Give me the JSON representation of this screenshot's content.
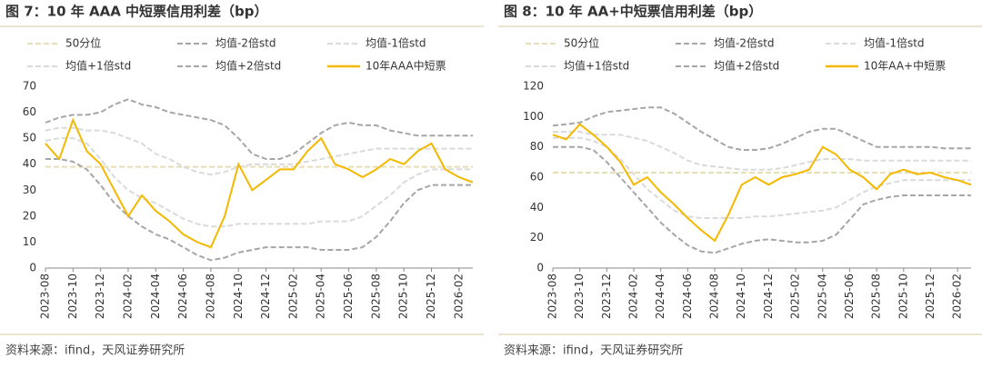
{
  "chart_data": [
    {
      "type": "line",
      "title": "图 7：10 年 AAA 中短票信用利差（bp）",
      "source": "资料来源：ifind，天风证券研究所",
      "categories": [
        "2023-08",
        null,
        "2023-10",
        null,
        "2023-12",
        null,
        "2024-02",
        null,
        "2024-04",
        null,
        "2024-06",
        null,
        "2024-08",
        null,
        "2024-10",
        null,
        "2024-12",
        null,
        "2025-02",
        null,
        "2025-04",
        null,
        "2025-06",
        null,
        "2025-08",
        null,
        "2025-10",
        null,
        "2025-12",
        null,
        "2026-02",
        null
      ],
      "ylim": [
        0,
        70
      ],
      "yticks": [
        0,
        10,
        20,
        30,
        40,
        50,
        60,
        70
      ],
      "series": [
        {
          "name": "50分位",
          "color": "#e6dfb5",
          "dash": true,
          "values": [
            39,
            39,
            39,
            39,
            39,
            39,
            39,
            39,
            39,
            39,
            39,
            39,
            39,
            39,
            39,
            39,
            39,
            39,
            39,
            39,
            39,
            39,
            39,
            39,
            39,
            39,
            39,
            39,
            39,
            39,
            39,
            39
          ]
        },
        {
          "name": "均值-2倍std",
          "color": "#a6a6a6",
          "dash": true,
          "values": [
            42,
            42,
            41,
            38,
            32,
            25,
            20,
            16,
            13,
            11,
            8,
            5,
            3,
            4,
            6,
            7,
            8,
            8,
            8,
            8,
            7,
            7,
            7,
            8,
            12,
            18,
            25,
            30,
            32,
            32,
            32,
            32
          ]
        },
        {
          "name": "均值-1倍std",
          "color": "#dadada",
          "dash": true,
          "values": [
            49,
            50,
            50,
            48,
            42,
            35,
            30,
            27,
            25,
            22,
            19,
            17,
            16,
            16,
            17,
            17,
            17,
            17,
            17,
            17,
            18,
            18,
            18,
            20,
            24,
            28,
            33,
            36,
            38,
            38,
            38,
            38
          ]
        },
        {
          "name": "均值+1倍std",
          "color": "#dadada",
          "dash": true,
          "values": [
            53,
            54,
            54,
            53,
            53,
            52,
            50,
            48,
            44,
            42,
            39,
            37,
            36,
            37,
            39,
            40,
            40,
            40,
            40,
            41,
            42,
            43,
            44,
            45,
            46,
            46,
            46,
            46,
            46,
            46,
            46,
            46
          ]
        },
        {
          "name": "均值+2倍std",
          "color": "#a6a6a6",
          "dash": true,
          "values": [
            56,
            58,
            59,
            59,
            60,
            63,
            65,
            63,
            62,
            60,
            59,
            58,
            57,
            55,
            50,
            44,
            42,
            42,
            44,
            48,
            52,
            55,
            56,
            55,
            55,
            53,
            52,
            51,
            51,
            51,
            51,
            51
          ]
        },
        {
          "name": "10年AAA中短票",
          "color": "#f5b800",
          "dash": false,
          "values": [
            48,
            42,
            57,
            45,
            40,
            30,
            20,
            28,
            22,
            18,
            13,
            10,
            8,
            20,
            40,
            30,
            34,
            38,
            38,
            45,
            50,
            40,
            38,
            35,
            38,
            42,
            40,
            45,
            48,
            38,
            35,
            33
          ]
        }
      ]
    },
    {
      "type": "line",
      "title": "图 8：10 年 AA+中短票信用利差（bp）",
      "source": "资料来源：ifind，天风证券研究所",
      "categories": [
        "2023-08",
        null,
        "2023-10",
        null,
        "2023-12",
        null,
        "2024-02",
        null,
        "2024-04",
        null,
        "2024-06",
        null,
        "2024-08",
        null,
        "2024-10",
        null,
        "2024-12",
        null,
        "2025-02",
        null,
        "2025-04",
        null,
        "2025-06",
        null,
        "2025-08",
        null,
        "2025-10",
        null,
        "2025-12",
        null,
        "2026-02",
        null
      ],
      "ylim": [
        0,
        120
      ],
      "yticks": [
        0,
        20,
        40,
        60,
        80,
        100,
        120
      ],
      "series": [
        {
          "name": "50分位",
          "color": "#e6dfb5",
          "dash": true,
          "values": [
            63,
            63,
            63,
            63,
            63,
            63,
            63,
            63,
            63,
            63,
            63,
            63,
            63,
            63,
            63,
            63,
            63,
            63,
            63,
            63,
            63,
            63,
            63,
            63,
            63,
            63,
            63,
            63,
            63,
            63,
            63,
            63
          ]
        },
        {
          "name": "均值-2倍std",
          "color": "#a6a6a6",
          "dash": true,
          "values": [
            80,
            80,
            80,
            78,
            70,
            60,
            50,
            40,
            30,
            22,
            15,
            11,
            10,
            13,
            16,
            18,
            19,
            18,
            17,
            17,
            18,
            22,
            32,
            42,
            45,
            47,
            48,
            48,
            48,
            48,
            48,
            48
          ]
        },
        {
          "name": "均值-1倍std",
          "color": "#dadada",
          "dash": true,
          "values": [
            86,
            86,
            86,
            84,
            80,
            72,
            62,
            52,
            45,
            38,
            34,
            33,
            33,
            33,
            33,
            34,
            34,
            35,
            36,
            37,
            38,
            40,
            45,
            50,
            54,
            56,
            58,
            58,
            58,
            58,
            58,
            58
          ]
        },
        {
          "name": "均值+1倍std",
          "color": "#dadada",
          "dash": true,
          "values": [
            90,
            90,
            90,
            88,
            88,
            88,
            86,
            84,
            80,
            76,
            71,
            68,
            67,
            66,
            65,
            65,
            65,
            66,
            68,
            70,
            72,
            72,
            72,
            71,
            71,
            71,
            71,
            71,
            71,
            71,
            71,
            71
          ]
        },
        {
          "name": "均值+2倍std",
          "color": "#a6a6a6",
          "dash": true,
          "values": [
            94,
            95,
            96,
            100,
            103,
            104,
            105,
            106,
            106,
            102,
            96,
            90,
            85,
            80,
            78,
            78,
            79,
            82,
            86,
            90,
            92,
            92,
            88,
            84,
            80,
            80,
            80,
            80,
            80,
            79,
            79,
            79
          ]
        },
        {
          "name": "10年AA+中短票",
          "color": "#f5b800",
          "dash": false,
          "values": [
            88,
            85,
            95,
            88,
            80,
            70,
            55,
            60,
            50,
            42,
            33,
            25,
            18,
            35,
            55,
            60,
            55,
            60,
            62,
            65,
            80,
            75,
            65,
            60,
            52,
            62,
            65,
            62,
            63,
            60,
            58,
            55
          ]
        }
      ]
    }
  ]
}
